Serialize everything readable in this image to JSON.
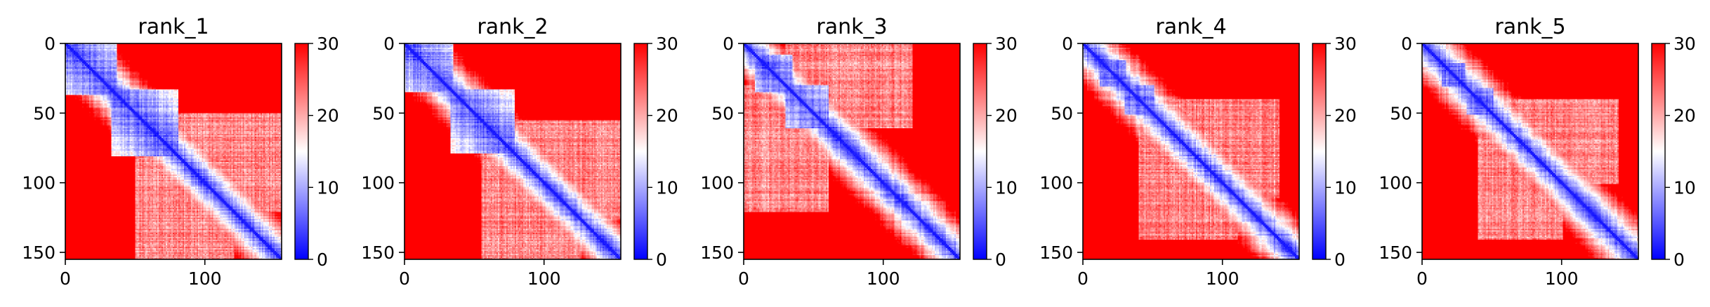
{
  "figure": {
    "colors": {
      "low": "#0000ff",
      "mid": "#ffffff",
      "high": "#ff0000",
      "axis": "#000000",
      "background": "#ffffff"
    }
  },
  "chart_data": [
    {
      "type": "heatmap",
      "title": "rank_1",
      "matrix_size": 155,
      "xticks": [
        0,
        100
      ],
      "yticks": [
        0,
        50,
        100,
        150
      ],
      "xlim": [
        0,
        155
      ],
      "ylim": [
        155,
        0
      ],
      "colorbar": {
        "colormap": "bwr",
        "range": [
          0,
          30
        ],
        "ticks": [
          0,
          10,
          20,
          30
        ]
      },
      "structure": {
        "diagonal_band": "blue",
        "blue_domains": [
          [
            0,
            36
          ],
          [
            33,
            80
          ]
        ],
        "background": "red",
        "lighter_regions": [
          [
            50,
            120,
            70,
            155
          ]
        ]
      }
    },
    {
      "type": "heatmap",
      "title": "rank_2",
      "matrix_size": 155,
      "xticks": [
        0,
        100
      ],
      "yticks": [
        0,
        50,
        100,
        150
      ],
      "xlim": [
        0,
        155
      ],
      "ylim": [
        155,
        0
      ],
      "colorbar": {
        "colormap": "bwr",
        "range": [
          0,
          30
        ],
        "ticks": [
          0,
          10,
          20,
          30
        ]
      },
      "structure": {
        "diagonal_band": "blue",
        "blue_domains": [
          [
            0,
            34
          ],
          [
            33,
            78
          ]
        ],
        "background": "red",
        "lighter_regions": [
          [
            55,
            125,
            75,
            155
          ]
        ]
      }
    },
    {
      "type": "heatmap",
      "title": "rank_3",
      "matrix_size": 155,
      "xticks": [
        0,
        100
      ],
      "yticks": [
        0,
        50,
        100,
        150
      ],
      "xlim": [
        0,
        155
      ],
      "ylim": [
        155,
        0
      ],
      "colorbar": {
        "colormap": "bwr",
        "range": [
          0,
          30
        ],
        "ticks": [
          0,
          10,
          20,
          30
        ]
      },
      "structure": {
        "diagonal_band": "blue",
        "blue_domains": [
          [
            8,
            34
          ],
          [
            30,
            60
          ]
        ],
        "background": "red",
        "lighter_regions": [
          [
            0,
            60,
            30,
            120
          ]
        ]
      }
    },
    {
      "type": "heatmap",
      "title": "rank_4",
      "matrix_size": 155,
      "xticks": [
        0,
        100
      ],
      "yticks": [
        0,
        50,
        100,
        150
      ],
      "xlim": [
        0,
        155
      ],
      "ylim": [
        155,
        0
      ],
      "colorbar": {
        "colormap": "bwr",
        "range": [
          0,
          30
        ],
        "ticks": [
          0,
          10,
          20,
          30
        ]
      },
      "structure": {
        "diagonal_band": "blue",
        "blue_domains": [
          [
            12,
            30
          ],
          [
            30,
            50
          ]
        ],
        "background": "red",
        "lighter_regions": [
          [
            40,
            110,
            60,
            140
          ]
        ]
      }
    },
    {
      "type": "heatmap",
      "title": "rank_5",
      "matrix_size": 155,
      "xticks": [
        0,
        100
      ],
      "yticks": [
        0,
        50,
        100,
        150
      ],
      "xlim": [
        0,
        155
      ],
      "ylim": [
        155,
        0
      ],
      "colorbar": {
        "colormap": "bwr",
        "range": [
          0,
          30
        ],
        "ticks": [
          0,
          10,
          20,
          30
        ]
      },
      "structure": {
        "diagonal_band": "blue",
        "blue_domains": [
          [
            14,
            30
          ],
          [
            32,
            50
          ]
        ],
        "background": "red",
        "lighter_regions": [
          [
            40,
            100,
            60,
            140
          ]
        ]
      }
    }
  ]
}
